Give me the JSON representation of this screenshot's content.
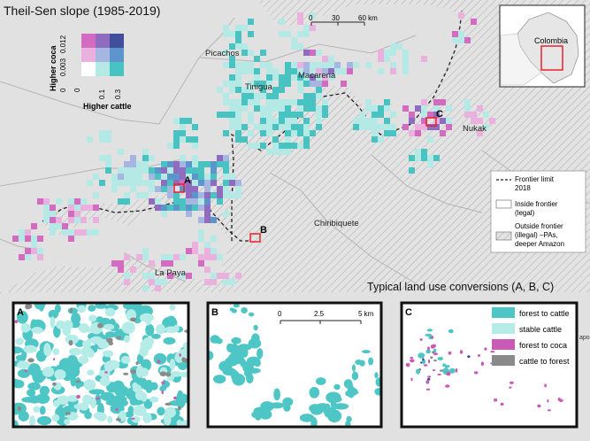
{
  "title": "Theil-Sen slope (1985-2019)",
  "bivariate_legend": {
    "y_label": "Higher coca",
    "x_label": "Higher cattle",
    "y_ticks": [
      "0.012",
      "0.003",
      "0"
    ],
    "x_ticks": [
      "0",
      "0.1",
      "0.3"
    ],
    "colors": [
      [
        "#d36cc0",
        "#8f6cc0",
        "#3f4f9c"
      ],
      [
        "#eab1df",
        "#a7b6e0",
        "#5c95cb"
      ],
      [
        "#ffffff",
        "#b5e9e6",
        "#49c2c2"
      ]
    ]
  },
  "scale_bar": {
    "ticks": [
      "0",
      "30",
      "60 km"
    ]
  },
  "place_labels": [
    "Picachos",
    "Tinigua",
    "Macarena",
    "Nukak",
    "Chiribiquete",
    "La Paya"
  ],
  "site_labels": [
    "A",
    "B",
    "C"
  ],
  "inset_map": {
    "country_label": "Colombia"
  },
  "frontier_legend": {
    "items": [
      {
        "symbol": "dashed-line",
        "label_lines": [
          "Frontier limit",
          "2018"
        ]
      },
      {
        "symbol": "white-box",
        "label_lines": [
          "Inside frontier",
          "(legal)"
        ]
      },
      {
        "symbol": "hatched-box",
        "label_lines": [
          "Outside frontier",
          "(illegal) –PAs,",
          "deeper Amazon"
        ]
      }
    ]
  },
  "conversions_title": "Typical land use conversions (A, B, C)",
  "panels": [
    {
      "letter": "A"
    },
    {
      "letter": "B",
      "scale_bar": {
        "ticks": [
          "0",
          "2.5",
          "5 km"
        ]
      }
    },
    {
      "letter": "C"
    }
  ],
  "landuse_legend": [
    {
      "label": "forest to cattle",
      "color": "#4fc6c6"
    },
    {
      "label": "stable cattle",
      "color": "#b6ece8"
    },
    {
      "label": "forest to coca",
      "color": "#c95bb6"
    },
    {
      "label": "cattle to forest",
      "color": "#8a8a8a"
    }
  ],
  "edge_label": "apo",
  "colors": {
    "map_background": "#e1e1e1",
    "boundary": "#b3b3b3",
    "frontier_line": "#222222",
    "site_box": "#e8222a"
  }
}
